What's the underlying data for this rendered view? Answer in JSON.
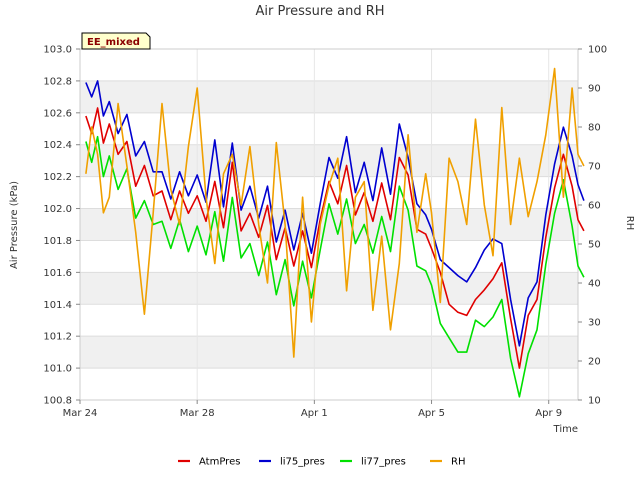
{
  "chart_data": {
    "type": "line",
    "title": "Air Pressure and RH",
    "badge": "EE_mixed",
    "xlabel": "Time",
    "ylabel": "Air Pressure (kPa)",
    "y2label": "RH",
    "xlim": [
      0,
      17
    ],
    "ylim": [
      100.8,
      103.0
    ],
    "y2lim": [
      10,
      100
    ],
    "x_ticks": [
      {
        "x": 0,
        "label": "Mar 24"
      },
      {
        "x": 4,
        "label": "Mar 28"
      },
      {
        "x": 8,
        "label": "Apr 1"
      },
      {
        "x": 12,
        "label": "Apr 5"
      },
      {
        "x": 16,
        "label": "Apr 9"
      }
    ],
    "y_ticks": [
      {
        "v": 100.8,
        "label": "100.8"
      },
      {
        "v": 101.0,
        "label": "101.0"
      },
      {
        "v": 101.2,
        "label": "101.2"
      },
      {
        "v": 101.4,
        "label": "101.4"
      },
      {
        "v": 101.6,
        "label": "101.6"
      },
      {
        "v": 101.8,
        "label": "101.8"
      },
      {
        "v": 102.0,
        "label": "102.0"
      },
      {
        "v": 102.2,
        "label": "102.2"
      },
      {
        "v": 102.4,
        "label": "102.4"
      },
      {
        "v": 102.6,
        "label": "102.6"
      },
      {
        "v": 102.8,
        "label": "102.8"
      },
      {
        "v": 103.0,
        "label": "103.0"
      }
    ],
    "y2_ticks": [
      {
        "v": 10,
        "label": "10"
      },
      {
        "v": 20,
        "label": "20"
      },
      {
        "v": 30,
        "label": "30"
      },
      {
        "v": 40,
        "label": "40"
      },
      {
        "v": 50,
        "label": "50"
      },
      {
        "v": 60,
        "label": "60"
      },
      {
        "v": 70,
        "label": "70"
      },
      {
        "v": 80,
        "label": "80"
      },
      {
        "v": 90,
        "label": "90"
      },
      {
        "v": 100,
        "label": "100"
      }
    ],
    "grid": true,
    "legend_position": "bottom",
    "series": [
      {
        "name": "AtmPres",
        "axis": "left",
        "color": "#e00000",
        "x": [
          0.2,
          0.4,
          0.6,
          0.8,
          1.0,
          1.3,
          1.6,
          1.9,
          2.2,
          2.5,
          2.8,
          3.1,
          3.4,
          3.7,
          4.0,
          4.3,
          4.6,
          4.9,
          5.2,
          5.5,
          5.8,
          6.1,
          6.4,
          6.7,
          7.0,
          7.3,
          7.6,
          7.9,
          8.2,
          8.5,
          8.8,
          9.1,
          9.4,
          9.7,
          10.0,
          10.3,
          10.6,
          10.9,
          11.2,
          11.5,
          11.8,
          12.0,
          12.3,
          12.6,
          12.9,
          13.2,
          13.5,
          13.8,
          14.1,
          14.4,
          14.7,
          15.0,
          15.3,
          15.6,
          15.9,
          16.2,
          16.5,
          16.8,
          17.0,
          17.2
        ],
        "y": [
          102.58,
          102.47,
          102.63,
          102.41,
          102.53,
          102.34,
          102.42,
          102.14,
          102.27,
          102.08,
          102.11,
          101.93,
          102.11,
          101.97,
          102.08,
          101.92,
          102.17,
          101.88,
          102.29,
          101.86,
          101.97,
          101.82,
          102.02,
          101.68,
          101.88,
          101.64,
          101.86,
          101.63,
          101.93,
          102.17,
          102.03,
          102.27,
          101.96,
          102.1,
          101.92,
          102.16,
          101.93,
          102.32,
          102.21,
          101.87,
          101.84,
          101.75,
          101.6,
          101.4,
          101.35,
          101.33,
          101.43,
          101.49,
          101.56,
          101.66,
          101.31,
          101.0,
          101.33,
          101.43,
          101.82,
          102.13,
          102.34,
          102.14,
          101.93,
          101.86
        ]
      },
      {
        "name": "li75_pres",
        "axis": "left",
        "color": "#0000d0",
        "x": [
          0.2,
          0.4,
          0.6,
          0.8,
          1.0,
          1.3,
          1.6,
          1.9,
          2.2,
          2.5,
          2.8,
          3.1,
          3.4,
          3.7,
          4.0,
          4.3,
          4.6,
          4.9,
          5.2,
          5.5,
          5.8,
          6.1,
          6.4,
          6.7,
          7.0,
          7.3,
          7.6,
          7.9,
          8.2,
          8.5,
          8.8,
          9.1,
          9.4,
          9.7,
          10.0,
          10.3,
          10.6,
          10.9,
          11.2,
          11.5,
          11.8,
          12.0,
          12.3,
          12.6,
          12.9,
          13.2,
          13.5,
          13.8,
          14.1,
          14.4,
          14.7,
          15.0,
          15.3,
          15.6,
          15.9,
          16.2,
          16.5,
          16.8,
          17.0,
          17.2
        ],
        "y": [
          102.79,
          102.7,
          102.8,
          102.58,
          102.67,
          102.47,
          102.59,
          102.33,
          102.42,
          102.23,
          102.23,
          102.06,
          102.23,
          102.08,
          102.21,
          102.04,
          102.43,
          102.01,
          102.41,
          101.99,
          102.14,
          101.94,
          102.14,
          101.79,
          101.99,
          101.74,
          101.97,
          101.72,
          102.03,
          102.32,
          102.19,
          102.45,
          102.1,
          102.29,
          102.05,
          102.38,
          102.09,
          102.53,
          102.32,
          102.03,
          101.96,
          101.87,
          101.68,
          101.63,
          101.58,
          101.54,
          101.63,
          101.74,
          101.81,
          101.78,
          101.43,
          101.14,
          101.44,
          101.54,
          101.96,
          102.28,
          102.51,
          102.33,
          102.15,
          102.05
        ]
      },
      {
        "name": "li77_pres",
        "axis": "left",
        "color": "#00e000",
        "x": [
          0.2,
          0.4,
          0.6,
          0.8,
          1.0,
          1.3,
          1.6,
          1.9,
          2.2,
          2.5,
          2.8,
          3.1,
          3.4,
          3.7,
          4.0,
          4.3,
          4.6,
          4.9,
          5.2,
          5.5,
          5.8,
          6.1,
          6.4,
          6.7,
          7.0,
          7.3,
          7.6,
          7.9,
          8.2,
          8.5,
          8.8,
          9.1,
          9.4,
          9.7,
          10.0,
          10.3,
          10.6,
          10.9,
          11.2,
          11.5,
          11.8,
          12.0,
          12.3,
          12.6,
          12.9,
          13.2,
          13.5,
          13.8,
          14.1,
          14.4,
          14.7,
          15.0,
          15.3,
          15.6,
          15.9,
          16.2,
          16.5,
          16.8,
          17.0,
          17.2
        ],
        "y": [
          102.42,
          102.29,
          102.45,
          102.2,
          102.33,
          102.12,
          102.25,
          101.94,
          102.05,
          101.9,
          101.92,
          101.75,
          101.93,
          101.73,
          101.89,
          101.71,
          101.98,
          101.67,
          102.07,
          101.69,
          101.78,
          101.58,
          101.79,
          101.46,
          101.68,
          101.39,
          101.67,
          101.44,
          101.74,
          102.03,
          101.84,
          102.06,
          101.78,
          101.9,
          101.72,
          101.95,
          101.73,
          102.14,
          101.99,
          101.64,
          101.61,
          101.52,
          101.28,
          101.19,
          101.1,
          101.1,
          101.3,
          101.26,
          101.32,
          101.43,
          101.06,
          100.82,
          101.09,
          101.24,
          101.65,
          101.97,
          102.18,
          101.89,
          101.64,
          101.57
        ]
      },
      {
        "name": "RH",
        "axis": "right",
        "color": "#f0a000",
        "x": [
          0.2,
          0.4,
          0.6,
          0.8,
          1.0,
          1.3,
          1.6,
          1.9,
          2.2,
          2.5,
          2.8,
          3.1,
          3.4,
          3.7,
          4.0,
          4.3,
          4.6,
          4.9,
          5.2,
          5.5,
          5.8,
          6.1,
          6.4,
          6.7,
          7.0,
          7.3,
          7.6,
          7.9,
          8.2,
          8.5,
          8.8,
          9.1,
          9.4,
          9.7,
          10.0,
          10.3,
          10.6,
          10.9,
          11.2,
          11.5,
          11.8,
          12.0,
          12.3,
          12.6,
          12.9,
          13.2,
          13.5,
          13.8,
          14.1,
          14.4,
          14.7,
          15.0,
          15.3,
          15.6,
          15.9,
          16.2,
          16.5,
          16.8,
          17.0,
          17.2
        ],
        "y": [
          68,
          80,
          73,
          58,
          62,
          86,
          70,
          53,
          32,
          58,
          86,
          64,
          55,
          75,
          90,
          62,
          45,
          68,
          73,
          60,
          75,
          55,
          40,
          76,
          55,
          21,
          62,
          30,
          55,
          65,
          72,
          38,
          62,
          66,
          33,
          52,
          28,
          45,
          78,
          53,
          68,
          58,
          35,
          72,
          66,
          55,
          82,
          60,
          47,
          85,
          55,
          72,
          57,
          66,
          78,
          95,
          62,
          90,
          73,
          70
        ]
      }
    ]
  }
}
